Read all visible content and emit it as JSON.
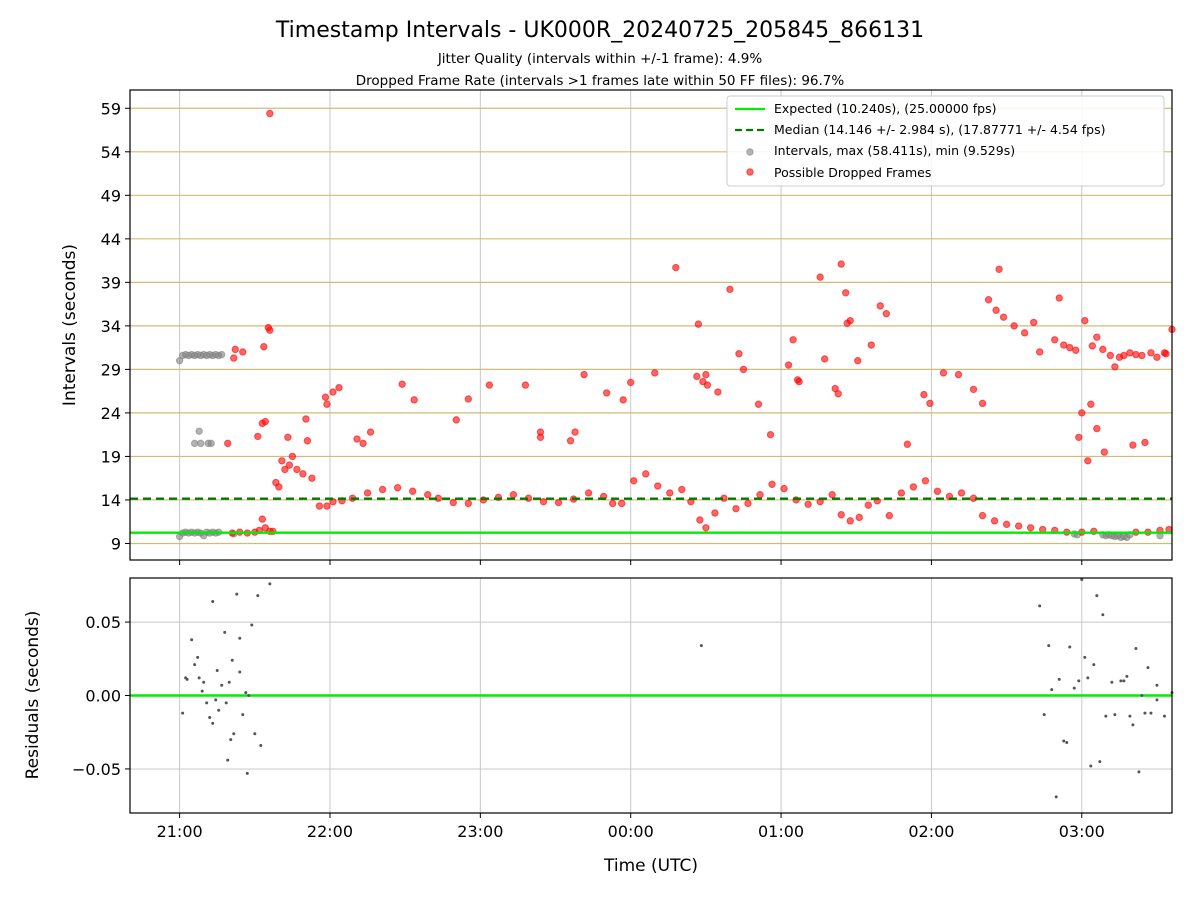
{
  "chart_data": {
    "type": "scatter",
    "title": "Timestamp Intervals - UK000R_20240725_205845_866131",
    "subtitle_lines": [
      "Jitter Quality (intervals within +/-1 frame): 4.9%",
      "Dropped Frame Rate (intervals >1 frames late within 50 FF files): 96.7%"
    ],
    "xlabel": "Time (UTC)",
    "xlim_hours": [
      20.67,
      27.6
    ],
    "x_ticks": [
      {
        "value": 21,
        "label": "21:00"
      },
      {
        "value": 22,
        "label": "22:00"
      },
      {
        "value": 23,
        "label": "23:00"
      },
      {
        "value": 24,
        "label": "00:00"
      },
      {
        "value": 25,
        "label": "01:00"
      },
      {
        "value": 26,
        "label": "02:00"
      },
      {
        "value": 27,
        "label": "03:00"
      }
    ],
    "top_panel": {
      "ylabel": "Intervals (seconds)",
      "ylim": [
        7.1,
        61.1
      ],
      "y_ticks": [
        9,
        14,
        19,
        24,
        29,
        34,
        39,
        44,
        49,
        54,
        59
      ],
      "grid_color": "#d2bb76",
      "expected_line": {
        "value": 10.24,
        "color": "#00ee00",
        "label": "Expected (10.240s), (25.00000 fps)"
      },
      "median_line": {
        "value": 14.146,
        "color": "#007a00",
        "label": "Median (14.146 +/- 2.984 s), (17.87771 +/- 4.54 fps)"
      },
      "intervals_label": "Intervals, max (58.411s), min (9.529s)",
      "dropped_label": "Possible Dropped Frames",
      "intervals_color": "#808080",
      "dropped_color": "#ff0000",
      "gray_points": [
        [
          21.0,
          30.0
        ],
        [
          21.02,
          30.6
        ],
        [
          21.04,
          30.7
        ],
        [
          21.06,
          30.6
        ],
        [
          21.08,
          30.7
        ],
        [
          21.1,
          30.6
        ],
        [
          21.12,
          30.7
        ],
        [
          21.14,
          30.6
        ],
        [
          21.16,
          30.7
        ],
        [
          21.18,
          30.6
        ],
        [
          21.2,
          30.7
        ],
        [
          21.22,
          30.6
        ],
        [
          21.24,
          30.7
        ],
        [
          21.26,
          30.6
        ],
        [
          21.28,
          30.7
        ],
        [
          21.13,
          21.9
        ],
        [
          21.14,
          20.5
        ],
        [
          21.1,
          20.5
        ],
        [
          21.19,
          20.5
        ],
        [
          21.21,
          20.5
        ],
        [
          21.0,
          9.8
        ],
        [
          21.02,
          10.2
        ],
        [
          21.04,
          10.3
        ],
        [
          21.06,
          10.2
        ],
        [
          21.08,
          10.3
        ],
        [
          21.1,
          10.2
        ],
        [
          21.12,
          10.3
        ],
        [
          21.14,
          10.2
        ],
        [
          21.16,
          9.9
        ],
        [
          21.18,
          10.3
        ],
        [
          21.2,
          10.2
        ],
        [
          21.22,
          10.3
        ],
        [
          21.24,
          10.2
        ],
        [
          21.26,
          10.3
        ],
        [
          21.36,
          10.1
        ],
        [
          26.95,
          10.1
        ],
        [
          26.97,
          10.0
        ],
        [
          27.14,
          10.0
        ],
        [
          27.16,
          9.9
        ],
        [
          27.18,
          10.0
        ],
        [
          27.2,
          9.9
        ],
        [
          27.22,
          9.8
        ],
        [
          27.24,
          9.9
        ],
        [
          27.26,
          9.7
        ],
        [
          27.28,
          9.8
        ],
        [
          27.3,
          9.7
        ],
        [
          27.32,
          10.0
        ],
        [
          27.52,
          9.9
        ]
      ],
      "red_points": [
        [
          21.6,
          58.4
        ],
        [
          21.59,
          33.8
        ],
        [
          21.6,
          33.5
        ],
        [
          21.56,
          31.6
        ],
        [
          21.42,
          31.0
        ],
        [
          21.37,
          31.3
        ],
        [
          21.36,
          30.3
        ],
        [
          21.32,
          20.5
        ],
        [
          21.52,
          21.3
        ],
        [
          21.55,
          22.8
        ],
        [
          21.57,
          23.0
        ],
        [
          21.68,
          18.5
        ],
        [
          21.72,
          21.2
        ],
        [
          21.75,
          19.0
        ],
        [
          21.84,
          23.3
        ],
        [
          21.85,
          20.8
        ],
        [
          21.97,
          25.8
        ],
        [
          21.98,
          25.0
        ],
        [
          22.02,
          26.4
        ],
        [
          22.06,
          26.9
        ],
        [
          22.18,
          21.0
        ],
        [
          22.22,
          20.5
        ],
        [
          22.27,
          21.8
        ],
        [
          22.48,
          27.3
        ],
        [
          22.56,
          25.5
        ],
        [
          22.84,
          23.2
        ],
        [
          22.92,
          25.6
        ],
        [
          23.06,
          27.2
        ],
        [
          23.3,
          27.2
        ],
        [
          23.4,
          21.8
        ],
        [
          23.4,
          21.2
        ],
        [
          23.6,
          20.8
        ],
        [
          23.63,
          21.8
        ],
        [
          23.69,
          28.4
        ],
        [
          23.84,
          26.3
        ],
        [
          23.95,
          25.5
        ],
        [
          24.0,
          27.5
        ],
        [
          24.16,
          28.6
        ],
        [
          24.3,
          40.7
        ],
        [
          24.44,
          28.2
        ],
        [
          24.48,
          27.6
        ],
        [
          24.5,
          28.4
        ],
        [
          24.45,
          34.2
        ],
        [
          24.51,
          27.2
        ],
        [
          24.58,
          26.4
        ],
        [
          24.66,
          38.2
        ],
        [
          24.72,
          30.8
        ],
        [
          24.75,
          29.0
        ],
        [
          24.85,
          25.0
        ],
        [
          24.93,
          21.5
        ],
        [
          25.05,
          29.5
        ],
        [
          25.08,
          32.4
        ],
        [
          25.11,
          27.8
        ],
        [
          25.12,
          27.6
        ],
        [
          25.26,
          39.6
        ],
        [
          25.29,
          30.2
        ],
        [
          25.36,
          26.8
        ],
        [
          25.44,
          34.3
        ],
        [
          25.46,
          34.6
        ],
        [
          25.38,
          26.2
        ],
        [
          25.4,
          41.1
        ],
        [
          25.43,
          37.8
        ],
        [
          25.51,
          30.0
        ],
        [
          25.6,
          31.8
        ],
        [
          25.66,
          36.3
        ],
        [
          25.7,
          35.4
        ],
        [
          25.84,
          20.4
        ],
        [
          25.95,
          26.1
        ],
        [
          25.99,
          25.1
        ],
        [
          26.08,
          28.6
        ],
        [
          26.18,
          28.4
        ],
        [
          26.28,
          26.7
        ],
        [
          26.34,
          25.1
        ],
        [
          26.38,
          37.0
        ],
        [
          26.43,
          35.8
        ],
        [
          26.45,
          40.5
        ],
        [
          26.48,
          35.0
        ],
        [
          26.55,
          34.0
        ],
        [
          26.62,
          33.2
        ],
        [
          26.68,
          34.4
        ],
        [
          26.72,
          31.0
        ],
        [
          26.82,
          32.4
        ],
        [
          26.85,
          37.2
        ],
        [
          26.88,
          31.8
        ],
        [
          26.92,
          31.5
        ],
        [
          26.96,
          31.2
        ],
        [
          27.02,
          34.6
        ],
        [
          27.07,
          31.7
        ],
        [
          27.1,
          32.7
        ],
        [
          27.14,
          31.3
        ],
        [
          27.06,
          25.0
        ],
        [
          27.0,
          24.0
        ],
        [
          26.98,
          21.2
        ],
        [
          27.04,
          18.5
        ],
        [
          27.1,
          22.2
        ],
        [
          27.15,
          19.5
        ],
        [
          27.19,
          30.6
        ],
        [
          27.22,
          29.3
        ],
        [
          27.25,
          30.4
        ],
        [
          27.28,
          30.6
        ],
        [
          27.32,
          30.9
        ],
        [
          27.36,
          30.7
        ],
        [
          27.4,
          30.6
        ],
        [
          27.46,
          30.9
        ],
        [
          27.5,
          30.4
        ],
        [
          27.55,
          30.9
        ],
        [
          27.6,
          33.6
        ],
        [
          27.34,
          20.3
        ],
        [
          27.42,
          20.6
        ],
        [
          27.56,
          30.8
        ],
        [
          21.35,
          10.2
        ],
        [
          21.4,
          10.3
        ],
        [
          21.45,
          10.2
        ],
        [
          21.5,
          10.3
        ],
        [
          21.53,
          10.5
        ],
        [
          21.55,
          11.8
        ],
        [
          21.57,
          10.8
        ],
        [
          21.6,
          10.4
        ],
        [
          21.62,
          10.4
        ],
        [
          21.64,
          16.0
        ],
        [
          21.66,
          15.5
        ],
        [
          21.7,
          17.5
        ],
        [
          21.73,
          18.0
        ],
        [
          21.78,
          17.5
        ],
        [
          21.82,
          17.0
        ],
        [
          21.88,
          16.5
        ],
        [
          21.93,
          13.3
        ],
        [
          21.98,
          13.3
        ],
        [
          22.02,
          13.8
        ],
        [
          22.08,
          13.9
        ],
        [
          22.15,
          14.2
        ],
        [
          22.25,
          14.8
        ],
        [
          22.35,
          15.2
        ],
        [
          22.45,
          15.4
        ],
        [
          22.55,
          15.0
        ],
        [
          22.65,
          14.6
        ],
        [
          22.72,
          14.2
        ],
        [
          22.82,
          13.7
        ],
        [
          22.92,
          13.6
        ],
        [
          23.02,
          14.0
        ],
        [
          23.12,
          14.3
        ],
        [
          23.22,
          14.6
        ],
        [
          23.32,
          14.2
        ],
        [
          23.42,
          13.8
        ],
        [
          23.52,
          13.7
        ],
        [
          23.62,
          14.1
        ],
        [
          23.72,
          14.8
        ],
        [
          23.82,
          14.4
        ],
        [
          23.88,
          13.6
        ],
        [
          23.94,
          13.6
        ],
        [
          24.02,
          16.2
        ],
        [
          24.1,
          17.0
        ],
        [
          24.18,
          15.6
        ],
        [
          24.26,
          14.8
        ],
        [
          24.34,
          15.2
        ],
        [
          24.4,
          13.8
        ],
        [
          24.46,
          11.7
        ],
        [
          24.5,
          10.8
        ],
        [
          24.56,
          12.5
        ],
        [
          24.62,
          14.2
        ],
        [
          24.7,
          13.0
        ],
        [
          24.78,
          13.6
        ],
        [
          24.86,
          14.6
        ],
        [
          24.94,
          15.8
        ],
        [
          25.02,
          15.3
        ],
        [
          25.1,
          14.0
        ],
        [
          25.18,
          13.5
        ],
        [
          25.26,
          13.8
        ],
        [
          25.34,
          14.6
        ],
        [
          25.4,
          12.3
        ],
        [
          25.46,
          11.6
        ],
        [
          25.52,
          12.0
        ],
        [
          25.58,
          13.4
        ],
        [
          25.64,
          13.9
        ],
        [
          25.72,
          12.2
        ],
        [
          25.8,
          14.8
        ],
        [
          25.88,
          15.5
        ],
        [
          25.96,
          16.2
        ],
        [
          26.04,
          15.0
        ],
        [
          26.12,
          14.4
        ],
        [
          26.2,
          14.8
        ],
        [
          26.28,
          14.2
        ],
        [
          26.34,
          12.2
        ],
        [
          26.42,
          11.6
        ],
        [
          26.5,
          11.2
        ],
        [
          26.58,
          11.0
        ],
        [
          26.66,
          10.8
        ],
        [
          26.74,
          10.6
        ],
        [
          26.82,
          10.5
        ],
        [
          26.9,
          10.3
        ],
        [
          27.0,
          10.3
        ],
        [
          27.08,
          10.4
        ],
        [
          27.36,
          10.3
        ],
        [
          27.44,
          10.3
        ],
        [
          27.52,
          10.5
        ],
        [
          27.58,
          10.6
        ]
      ]
    },
    "bottom_panel": {
      "ylabel": "Residuals (seconds)",
      "ylim": [
        -0.08,
        0.08
      ],
      "y_ticks": [
        {
          "value": 0.05,
          "label": "0.05"
        },
        {
          "value": 0.0,
          "label": "0.00"
        },
        {
          "value": -0.05,
          "label": "−0.05"
        }
      ],
      "zero_line_color": "#00ee00",
      "points": [
        [
          21.02,
          -0.012
        ],
        [
          21.04,
          0.012
        ],
        [
          21.05,
          0.011
        ],
        [
          21.08,
          0.038
        ],
        [
          21.1,
          0.021
        ],
        [
          21.12,
          0.026
        ],
        [
          21.13,
          0.012
        ],
        [
          21.15,
          0.003
        ],
        [
          21.16,
          0.009
        ],
        [
          21.18,
          -0.005
        ],
        [
          21.2,
          -0.015
        ],
        [
          21.22,
          0.064
        ],
        [
          21.24,
          -0.003
        ],
        [
          21.26,
          -0.01
        ],
        [
          21.28,
          0.007
        ],
        [
          21.3,
          0.043
        ],
        [
          21.32,
          -0.044
        ],
        [
          21.34,
          -0.03
        ],
        [
          21.36,
          -0.026
        ],
        [
          21.38,
          0.069
        ],
        [
          21.4,
          0.039
        ],
        [
          21.42,
          -0.013
        ],
        [
          21.44,
          0.002
        ],
        [
          21.46,
          0.0
        ],
        [
          21.48,
          0.048
        ],
        [
          21.5,
          -0.026
        ],
        [
          21.52,
          0.068
        ],
        [
          21.54,
          -0.034
        ],
        [
          21.6,
          0.076
        ],
        [
          21.25,
          0.017
        ],
        [
          21.35,
          0.024
        ],
        [
          21.4,
          0.016
        ],
        [
          21.22,
          -0.019
        ],
        [
          21.45,
          -0.053
        ],
        [
          24.47,
          0.034
        ],
        [
          26.72,
          0.061
        ],
        [
          26.75,
          -0.013
        ],
        [
          26.78,
          0.034
        ],
        [
          26.8,
          0.004
        ],
        [
          26.83,
          -0.069
        ],
        [
          26.85,
          0.011
        ],
        [
          26.88,
          -0.031
        ],
        [
          26.9,
          -0.032
        ],
        [
          26.92,
          0.033
        ],
        [
          26.95,
          0.005
        ],
        [
          26.98,
          0.01
        ],
        [
          27.0,
          0.079
        ],
        [
          27.02,
          0.026
        ],
        [
          27.04,
          0.012
        ],
        [
          27.06,
          -0.048
        ],
        [
          27.08,
          0.021
        ],
        [
          27.1,
          0.068
        ],
        [
          27.12,
          -0.045
        ],
        [
          27.14,
          0.055
        ],
        [
          27.16,
          -0.014
        ],
        [
          27.22,
          -0.013
        ],
        [
          27.26,
          0.01
        ],
        [
          27.28,
          0.01
        ],
        [
          27.3,
          0.013
        ],
        [
          27.32,
          -0.014
        ],
        [
          27.34,
          -0.02
        ],
        [
          27.36,
          0.032
        ],
        [
          27.38,
          -0.052
        ],
        [
          27.42,
          -0.012
        ],
        [
          27.44,
          0.019
        ],
        [
          27.46,
          -0.012
        ],
        [
          27.5,
          0.007
        ],
        [
          27.55,
          -0.014
        ],
        [
          27.6,
          0.002
        ],
        [
          21.31,
          -0.005
        ],
        [
          21.33,
          0.009
        ],
        [
          27.2,
          0.009
        ],
        [
          27.4,
          0.0
        ],
        [
          27.5,
          -0.003
        ]
      ]
    }
  }
}
